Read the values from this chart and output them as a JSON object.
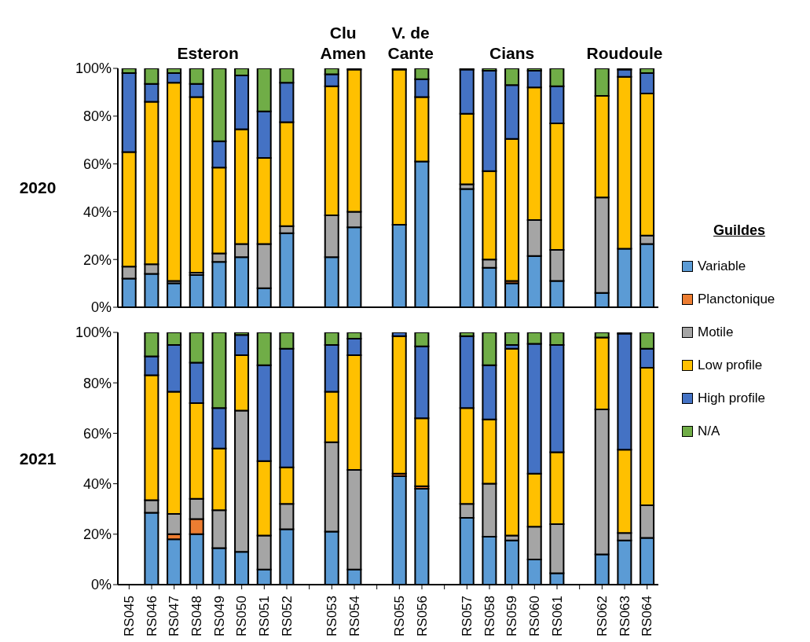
{
  "chart_data": [
    {
      "type": "bar",
      "stacked": true,
      "ylabel": "2020",
      "legend_title": "Guildes",
      "legend": "right",
      "tick_labels": "y",
      "categories": [
        null,
        null,
        null,
        null,
        null,
        null,
        null,
        null,
        null,
        null,
        null,
        null,
        null,
        null,
        null,
        null,
        null,
        null,
        null,
        null,
        null,
        null,
        null,
        null
      ],
      "ylim": [
        0,
        100
      ],
      "yticks": [
        {
          "value": 0,
          "label": "0%"
        },
        {
          "value": 20,
          "label": "20%"
        },
        {
          "value": 40,
          "label": "40%"
        },
        {
          "value": 60,
          "label": "60%"
        },
        {
          "value": 80,
          "label": "80%"
        },
        {
          "value": 100,
          "label": "100%"
        }
      ],
      "annotations": [
        "Esteron",
        "Clu Amen",
        "V. de Cante",
        "Cians",
        "Roudoule"
      ],
      "series": [
        {
          "name": "Variable",
          "color": "#5b9bd5",
          "values": [
            12,
            14,
            10,
            13.5,
            19,
            21,
            8,
            31,
            null,
            21,
            33.5,
            null,
            34.5,
            61,
            null,
            49.5,
            16.5,
            10,
            21.5,
            11,
            null,
            6,
            24.5,
            26.5
          ]
        },
        {
          "name": "Planctonique",
          "color": "#ed7d31",
          "values": [
            0,
            0,
            0,
            0,
            0,
            0,
            0,
            0,
            null,
            0,
            0,
            null,
            0,
            0,
            null,
            0,
            0,
            1,
            0,
            0,
            null,
            0,
            0,
            0
          ]
        },
        {
          "name": "Motile",
          "color": "#a5a5a5",
          "values": [
            5,
            4,
            1,
            1,
            3.5,
            5.5,
            18.5,
            3,
            null,
            17.5,
            6.5,
            null,
            0,
            0,
            null,
            2,
            3.5,
            0,
            15,
            13,
            null,
            40,
            0,
            3.5
          ]
        },
        {
          "name": "Low profile",
          "color": "#ffc000",
          "values": [
            48,
            68,
            83,
            73.5,
            36,
            48,
            36,
            43.5,
            null,
            54,
            59.5,
            null,
            65,
            27,
            null,
            29.5,
            37,
            59.5,
            55.5,
            53,
            null,
            42.5,
            72,
            59.5
          ]
        },
        {
          "name": "High profile",
          "color": "#4472c4",
          "values": [
            33,
            7.5,
            4,
            5.5,
            11,
            22.5,
            19.5,
            16.5,
            null,
            5,
            0.5,
            null,
            0.5,
            7.5,
            null,
            18.5,
            42,
            22.5,
            7,
            15.5,
            null,
            0,
            3,
            8.5
          ]
        },
        {
          "name": "N/A",
          "color": "#70ad47",
          "values": [
            2,
            6.5,
            2,
            6.5,
            30.5,
            3,
            18,
            6,
            null,
            2.5,
            0,
            null,
            0,
            4.5,
            null,
            0.5,
            1,
            7,
            1,
            7.5,
            null,
            11.5,
            0.5,
            2
          ]
        }
      ]
    },
    {
      "type": "bar",
      "stacked": true,
      "ylabel": "2021",
      "categories": [
        "RS045",
        "RS046",
        "RS047",
        "RS048",
        "RS049",
        "RS050",
        "RS051",
        "RS052",
        null,
        "RS053",
        "RS054",
        null,
        "RS055",
        "RS056",
        null,
        "RS057",
        "RS058",
        "RS059",
        "RS060",
        "RS061",
        null,
        "RS062",
        "RS063",
        "RS064"
      ],
      "ylim": [
        0,
        100
      ],
      "yticks": [
        {
          "value": 0,
          "label": "0%"
        },
        {
          "value": 20,
          "label": "20%"
        },
        {
          "value": 40,
          "label": "40%"
        },
        {
          "value": 60,
          "label": "60%"
        },
        {
          "value": 80,
          "label": "80%"
        },
        {
          "value": 100,
          "label": "100%"
        }
      ],
      "series": [
        {
          "color": "#5b9bd5",
          "values": [
            null,
            28.5,
            18,
            20,
            14.5,
            13,
            6,
            22,
            null,
            21,
            6,
            null,
            43,
            38,
            null,
            26.5,
            19,
            17.5,
            10,
            4.5,
            null,
            12,
            17.5,
            18.5
          ]
        },
        {
          "color": "#ed7d31",
          "values": [
            null,
            0,
            2,
            6,
            0,
            0,
            0,
            0,
            null,
            0,
            0,
            null,
            1,
            1,
            null,
            0,
            0,
            0,
            0,
            0,
            null,
            0,
            0,
            0
          ]
        },
        {
          "color": "#a5a5a5",
          "values": [
            null,
            5,
            8,
            8,
            15,
            56,
            13.5,
            10,
            null,
            35.5,
            39.5,
            null,
            0,
            0,
            null,
            5.5,
            21,
            2,
            13,
            19.5,
            null,
            57.5,
            3,
            13
          ]
        },
        {
          "color": "#ffc000",
          "values": [
            null,
            49.5,
            48.5,
            38,
            24.5,
            22,
            29.5,
            14.5,
            null,
            20,
            45.5,
            null,
            54.5,
            27,
            null,
            38,
            25.5,
            74,
            21,
            28.5,
            null,
            28.5,
            33,
            54.5
          ]
        },
        {
          "color": "#4472c4",
          "values": [
            null,
            7.5,
            18.5,
            16,
            16,
            8,
            38,
            47,
            null,
            18.5,
            6.5,
            null,
            1.5,
            28.5,
            null,
            28.5,
            21.5,
            1.5,
            51.5,
            42.5,
            null,
            0,
            46,
            7.5
          ]
        },
        {
          "color": "#70ad47",
          "values": [
            null,
            9.5,
            5,
            12,
            30,
            1,
            13,
            6.5,
            null,
            5,
            2.5,
            null,
            0,
            5.5,
            null,
            1.5,
            13,
            5,
            4.5,
            5,
            null,
            2,
            0.5,
            6.5
          ]
        }
      ]
    }
  ]
}
